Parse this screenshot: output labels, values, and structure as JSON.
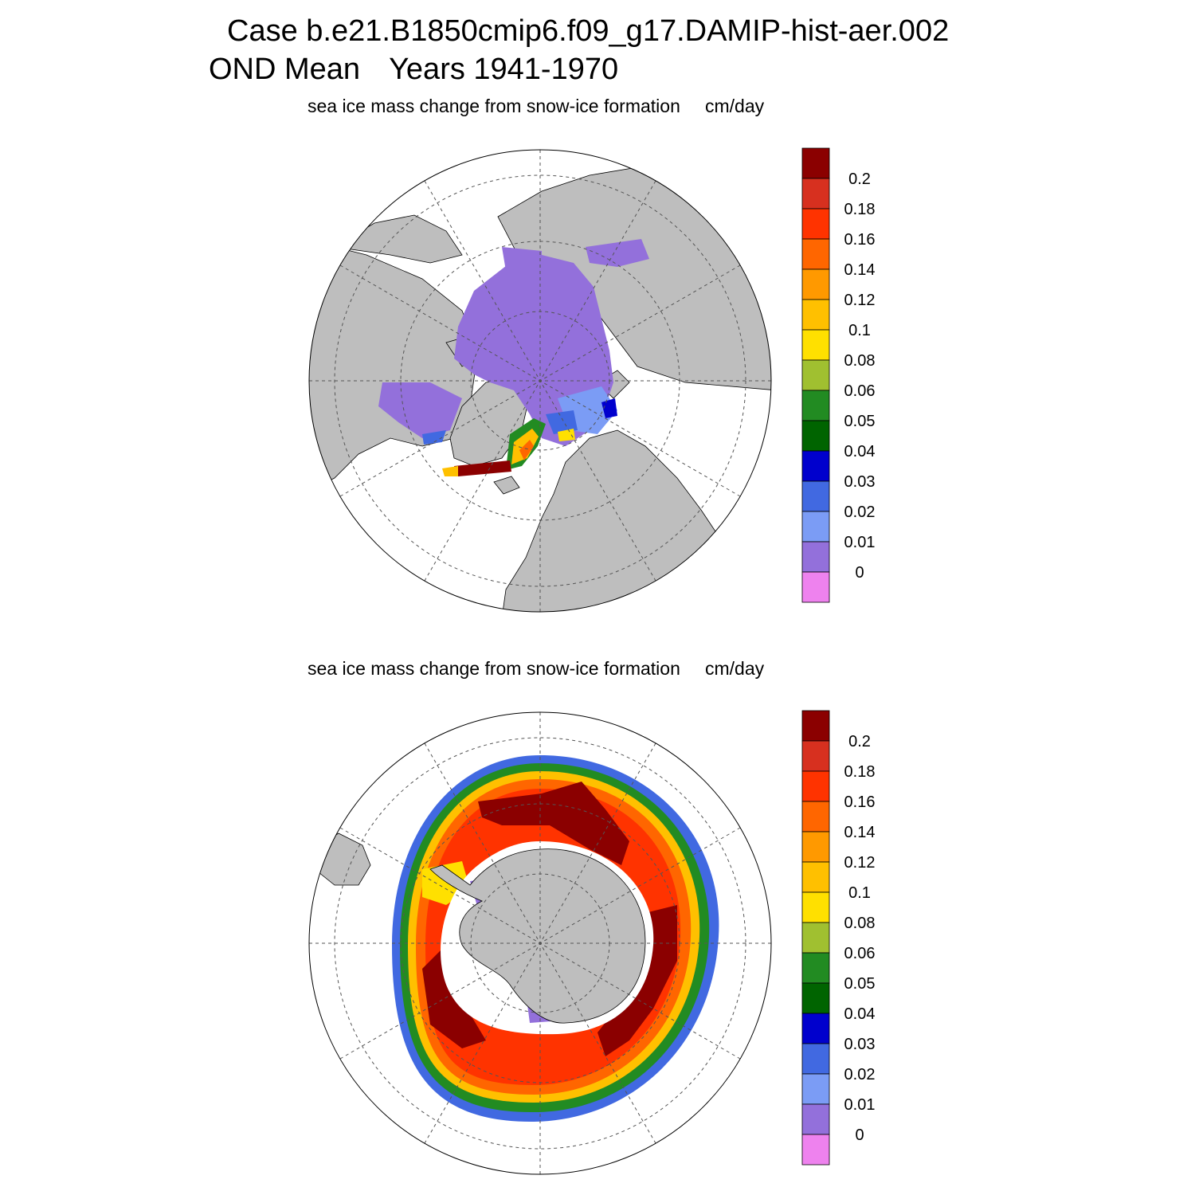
{
  "header": {
    "case_line": "Case b.e21.B1850cmip6.f09_g17.DAMIP-hist-aer.002",
    "season": "OND Mean",
    "years": "Years 1941-1970"
  },
  "panels": [
    {
      "hemisphere": "north",
      "field": "sea ice mass change from snow-ice formation",
      "units": "cm/day"
    },
    {
      "hemisphere": "south",
      "field": "sea ice mass change from snow-ice formation",
      "units": "cm/day"
    }
  ],
  "colorbar": {
    "labels": [
      "0.2",
      "0.18",
      "0.16",
      "0.14",
      "0.12",
      "0.1",
      "0.08",
      "0.06",
      "0.05",
      "0.04",
      "0.03",
      "0.02",
      "0.01",
      "0"
    ],
    "colors": [
      "#8b0000",
      "#d7301f",
      "#ff3300",
      "#ff6600",
      "#ff9900",
      "#ffc000",
      "#ffe000",
      "#a0c030",
      "#228b22",
      "#006400",
      "#0000cd",
      "#4169e1",
      "#7b9cf5",
      "#9370db",
      "#ee82ee"
    ]
  },
  "palette": {
    "land": "#bebebe",
    "ocean": "#ffffff",
    "grid": "#555555"
  }
}
